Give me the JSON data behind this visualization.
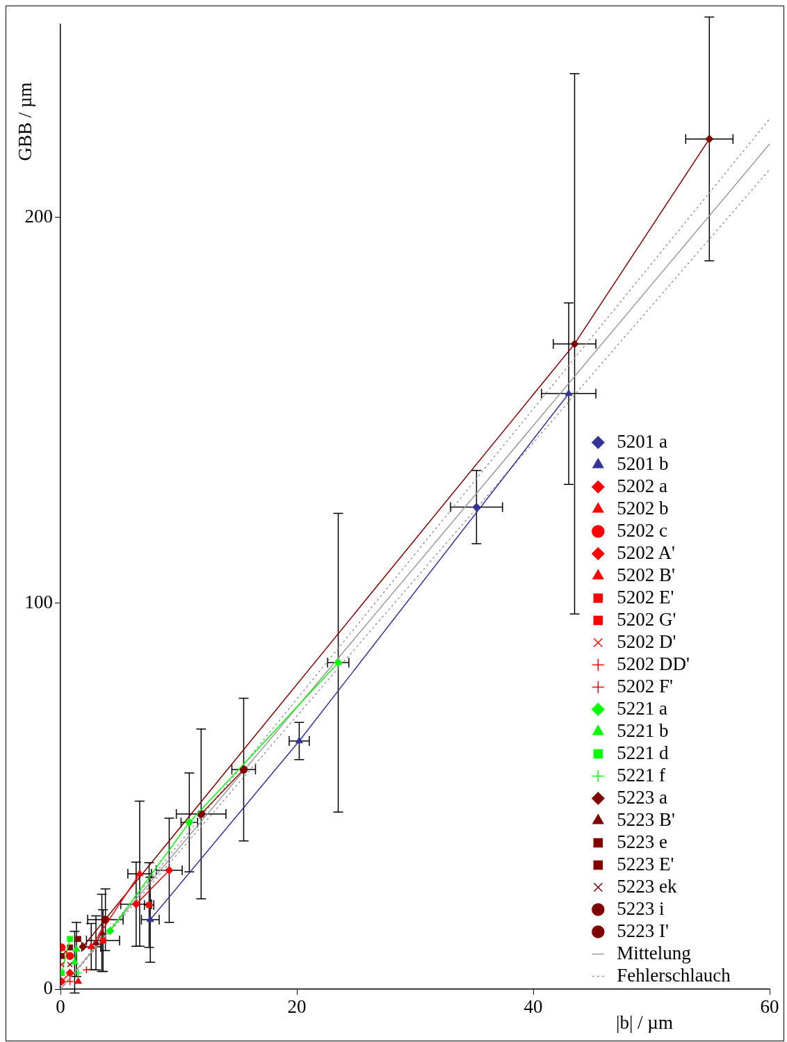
{
  "chart_data": {
    "type": "line",
    "xlabel": "|b| / µm",
    "ylabel": "GBB / µm",
    "xlim": [
      0,
      60
    ],
    "ylim": [
      0,
      250
    ],
    "xticks": [
      0,
      20,
      40,
      60
    ],
    "yticks": [
      0,
      100,
      200
    ],
    "legend": "right",
    "series": [
      {
        "name": "5201 a",
        "color": "#333399",
        "marker": "diamond",
        "x": [
          35.2
        ],
        "values": [
          124.9
        ],
        "errors": [
          9.5
        ],
        "xerrors": [
          2.2
        ]
      },
      {
        "name": "5201 b",
        "color": "#333399",
        "marker": "triangle",
        "x": [
          7.6,
          20.2,
          43.0
        ],
        "values": [
          18,
          64.3,
          154.3
        ],
        "errors": [
          11,
          4.8,
          23.5
        ],
        "xerrors": [
          0.75,
          0.85,
          2.3
        ]
      },
      {
        "name": "5202 a",
        "color": "#ff0000",
        "marker": "diamond",
        "x": [
          0.1,
          0.8
        ],
        "values": [
          2,
          4.2
        ]
      },
      {
        "name": "5202 b",
        "color": "#ff0000",
        "marker": "triangle",
        "x": [
          1.5
        ],
        "values": [
          2
        ]
      },
      {
        "name": "5202 c",
        "color": "#ff0000",
        "marker": "circle",
        "x": [
          0.1,
          0.8
        ],
        "values": [
          10.8,
          8.6
        ]
      },
      {
        "name": "5202 A'",
        "color": "#ff0000",
        "marker": "diamond",
        "x": [
          6.4,
          9.2
        ],
        "values": [
          22,
          30.8
        ],
        "errors": [
          10.9,
          13.5
        ],
        "xerrors": [
          1.3,
          1.1
        ]
      },
      {
        "name": "5202 B'",
        "color": "#ff0000",
        "marker": "triangle",
        "x": [
          2.6,
          6.7
        ],
        "values": [
          11,
          29.9
        ],
        "errors": [
          6,
          18.8
        ],
        "xerrors": [
          0.8,
          1
        ]
      },
      {
        "name": "5202 E'",
        "color": "#ff0000",
        "marker": "square",
        "x": [
          3.6
        ],
        "values": [
          12.6
        ],
        "errors": [
          8
        ],
        "xerrors": [
          1.4
        ]
      },
      {
        "name": "5202 G'",
        "color": "#ff0000",
        "marker": "square",
        "x": [
          7.5
        ],
        "values": [
          21.8
        ],
        "errors": [
          11
        ],
        "xerrors": [
          0.4
        ]
      },
      {
        "name": "5202 D'",
        "color": "#ff0000",
        "marker": "x",
        "x": [
          0.1
        ],
        "values": [
          6.4
        ]
      },
      {
        "name": "5202 DD'",
        "color": "#ff0000",
        "marker": "cross",
        "x": [
          2.2
        ],
        "values": [
          5
        ]
      },
      {
        "name": "5202 F'",
        "color": "#ff0000",
        "marker": "cross",
        "x": [
          0.8
        ],
        "values": [
          2
        ]
      },
      {
        "name": "5221 a",
        "color": "#00ff00",
        "marker": "diamond",
        "x": [
          4.2,
          10.9,
          23.5
        ],
        "values": [
          15.1,
          43.2,
          84.6
        ],
        "errors": [
          null,
          12.8,
          38.7
        ],
        "xerrors": [
          null,
          0.7,
          0.9
        ]
      },
      {
        "name": "5221 b",
        "color": "#00ff00",
        "marker": "triangle",
        "x": [
          1.2,
          1.35
        ],
        "values": [
          7,
          10.3
        ],
        "errors": [
          8,
          7
        ]
      },
      {
        "name": "5221 d",
        "color": "#00ff00",
        "marker": "square",
        "x": [
          0.1,
          0.8
        ],
        "values": [
          4.2,
          13
        ]
      },
      {
        "name": "5221 f",
        "color": "#00ff00",
        "marker": "cross",
        "x": [
          1.5
        ],
        "values": [
          4.2
        ]
      },
      {
        "name": "5223 a",
        "color": "#800000",
        "marker": "diamond",
        "x": [
          1.9,
          43.5,
          54.9
        ],
        "values": [
          11,
          167.2,
          220.3
        ],
        "errors": [
          null,
          70,
          31.6
        ],
        "xerrors": [
          null,
          1.8,
          2
        ]
      },
      {
        "name": "5223 B'",
        "color": "#800000",
        "marker": "triangle",
        "x": [
          3.0,
          3.5
        ],
        "values": [
          12,
          14.6
        ],
        "errors": [
          7,
          10
        ]
      },
      {
        "name": "5223 e",
        "color": "#800000",
        "marker": "square",
        "x": [
          0.1,
          0.8
        ],
        "values": [
          8.6,
          10.8
        ]
      },
      {
        "name": "5223 E'",
        "color": "#800000",
        "marker": "square",
        "x": [
          1.5
        ],
        "values": [
          13
        ]
      },
      {
        "name": "5223 ek",
        "color": "#800000",
        "marker": "x",
        "x": [
          0.8
        ],
        "values": [
          6.4
        ]
      },
      {
        "name": "5223 i",
        "color": "#800000",
        "marker": "circle",
        "x": [
          3.8
        ],
        "values": [
          18
        ],
        "errors": [
          8
        ],
        "xerrors": [
          1.5
        ]
      },
      {
        "name": "5223 I'",
        "color": "#800000",
        "marker": "circle",
        "x": [
          11.9,
          15.5
        ],
        "values": [
          45.4,
          56.9
        ],
        "errors": [
          22,
          18.5
        ],
        "xerrors": [
          2.1,
          1
        ]
      },
      {
        "name": "Mittelung",
        "color": "#999999",
        "marker": "none",
        "x": [
          0,
          60
        ],
        "values": [
          0,
          219
        ]
      },
      {
        "name": "Fehlerschlauch",
        "color": "#999999",
        "marker": "none",
        "line_style": "dotted",
        "x": [
          0,
          60
        ],
        "values": [
          0,
          225.5
        ]
      },
      {
        "color": "#999999",
        "marker": "none",
        "line_style": "dotted",
        "x": [
          0,
          60
        ],
        "values": [
          0,
          212.4
        ]
      }
    ]
  }
}
